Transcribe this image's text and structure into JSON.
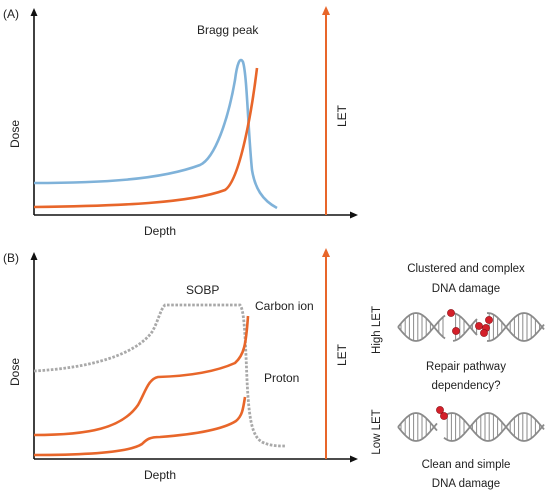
{
  "panel_a": {
    "label": "(A)",
    "peak_label": "Bragg peak",
    "y_label": "Dose",
    "x_label": "Depth",
    "let_label": "LET"
  },
  "panel_b": {
    "label": "(B)",
    "sobp_label": "SOBP",
    "carbon_label": "Carbon ion",
    "proton_label": "Proton",
    "y_label": "Dose",
    "x_label": "Depth",
    "let_label": "LET"
  },
  "dna": {
    "high_title_1": "Clustered and complex",
    "high_title_2": "DNA damage",
    "high_let": "High LET",
    "question_1": "Repair pathway",
    "question_2": "dependency?",
    "low_let": "Low LET",
    "low_title_1": "Clean and simple",
    "low_title_2": "DNA damage"
  },
  "colors": {
    "blue_curve": "#7fb2d9",
    "orange": "#e8662a",
    "sobp_gray": "#a9a9a9",
    "axis": "#111111",
    "dna_strand": "#8a8a8a",
    "damage_dot": "#d4202a"
  }
}
